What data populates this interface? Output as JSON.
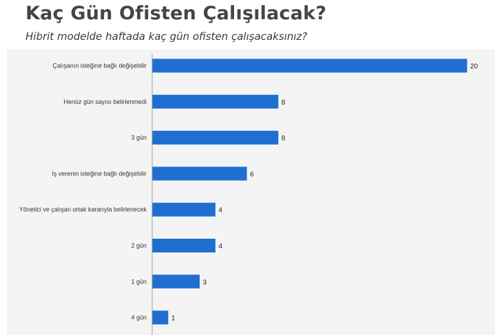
{
  "header": {
    "title": "Kaç Gün Ofisten Çalışılacak?",
    "subtitle": "Hibrit modelde haftada kaç gün ofisten çalışacaksınız?"
  },
  "colors": {
    "bar": "#1f6fd1",
    "axis": "#9a9a9a",
    "panel": "#f4f4f4"
  },
  "chart_data": {
    "type": "bar",
    "orientation": "horizontal",
    "categories": [
      "Çalışanın isteğine bağlı değişebilir",
      "Henüz gün sayısı belirlenmedi",
      "3 gün",
      "İş verenin isteğine bağlı değişebilir",
      "Yönetici ve çalışan ortak kararıyla belirlenecek",
      "2 gün",
      "1 gün",
      "4 gün"
    ],
    "values": [
      20,
      8,
      8,
      6,
      4,
      4,
      3,
      1
    ],
    "data_labels": [
      "20",
      "8",
      "8",
      "6",
      "4",
      "4",
      "3",
      "1"
    ],
    "xlim": [
      0,
      20
    ],
    "grid": false,
    "legend": "none"
  }
}
